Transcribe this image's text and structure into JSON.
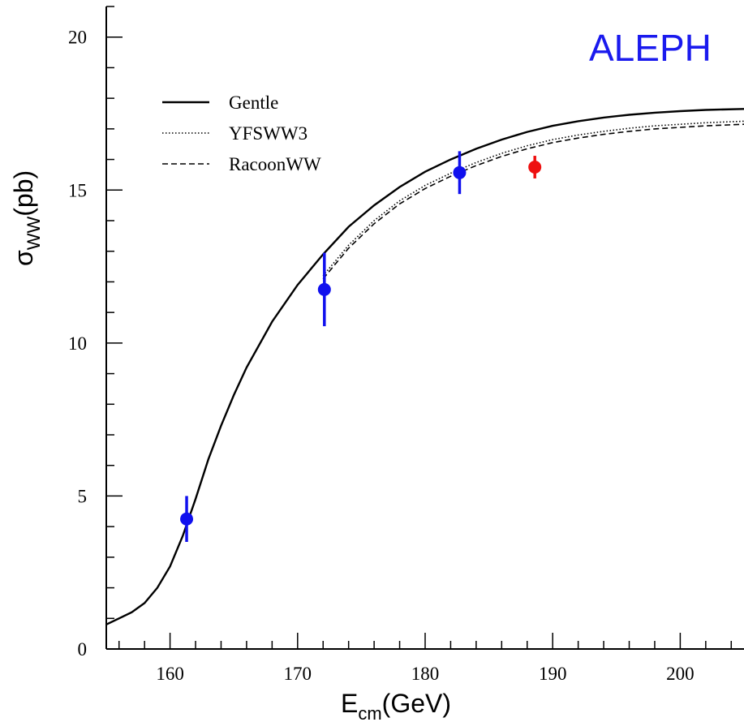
{
  "chart_data": {
    "type": "line",
    "title": "",
    "experiment_label": "ALEPH",
    "experiment_color": "#1a1aee",
    "xlabel": {
      "base": "E",
      "sub": "cm",
      "unit": "(GeV)"
    },
    "ylabel": {
      "base": "σ",
      "sub": "WW",
      "unit": "(pb)"
    },
    "xlim": [
      155,
      205
    ],
    "ylim": [
      0,
      21
    ],
    "x_ticks": [
      160,
      170,
      180,
      190,
      200
    ],
    "y_ticks": [
      0,
      5,
      10,
      15,
      20
    ],
    "x_minor_step": 2,
    "y_minor_step": 1,
    "grid": false,
    "legend": {
      "position": "top-left",
      "entries": [
        {
          "label": "Gentle",
          "style": "solid"
        },
        {
          "label": "YFSWW3",
          "style": "dotted"
        },
        {
          "label": "RacoonWW",
          "style": "dashed"
        }
      ]
    },
    "series": [
      {
        "name": "Gentle",
        "style": "solid",
        "x": [
          155,
          156,
          157,
          158,
          159,
          160,
          161,
          162,
          163,
          164,
          165,
          166,
          168,
          170,
          172,
          174,
          176,
          178,
          180,
          182,
          184,
          186,
          188,
          190,
          192,
          194,
          196,
          198,
          200,
          202,
          205
        ],
        "y": [
          0.8,
          1.0,
          1.2,
          1.5,
          2.0,
          2.7,
          3.7,
          4.9,
          6.2,
          7.3,
          8.3,
          9.2,
          10.7,
          11.9,
          12.9,
          13.8,
          14.5,
          15.1,
          15.6,
          16.0,
          16.35,
          16.65,
          16.9,
          17.1,
          17.25,
          17.37,
          17.46,
          17.53,
          17.58,
          17.62,
          17.65
        ]
      },
      {
        "name": "YFSWW3",
        "style": "dotted",
        "x": [
          172,
          174,
          176,
          178,
          180,
          182,
          184,
          186,
          188,
          190,
          192,
          194,
          196,
          198,
          200,
          202,
          205
        ],
        "y": [
          12.2,
          13.2,
          14.0,
          14.65,
          15.15,
          15.55,
          15.9,
          16.2,
          16.45,
          16.65,
          16.8,
          16.92,
          17.02,
          17.1,
          17.15,
          17.2,
          17.25
        ]
      },
      {
        "name": "RacoonWW",
        "style": "dashed",
        "x": [
          172,
          174,
          176,
          178,
          180,
          182,
          184,
          186,
          188,
          190,
          192,
          194,
          196,
          198,
          200,
          202,
          205
        ],
        "y": [
          12.1,
          13.1,
          13.9,
          14.55,
          15.05,
          15.45,
          15.8,
          16.1,
          16.35,
          16.55,
          16.7,
          16.82,
          16.92,
          17.0,
          17.05,
          17.1,
          17.15
        ]
      }
    ],
    "points": [
      {
        "x": 161.3,
        "y": 4.25,
        "err": 0.75,
        "color": "#1010ee"
      },
      {
        "x": 172.1,
        "y": 11.75,
        "err": 1.2,
        "color": "#1010ee"
      },
      {
        "x": 182.7,
        "y": 15.57,
        "err": 0.7,
        "color": "#1010ee"
      },
      {
        "x": 188.6,
        "y": 15.75,
        "err": 0.37,
        "color": "#ee1010"
      }
    ]
  }
}
